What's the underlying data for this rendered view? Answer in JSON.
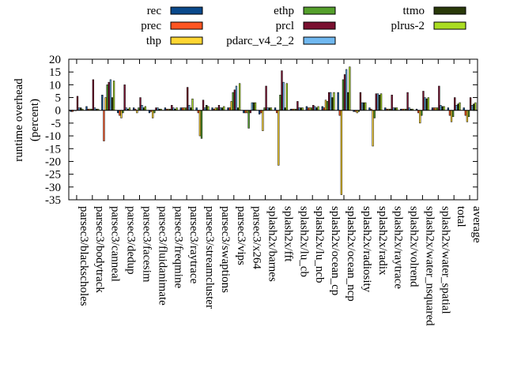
{
  "chart_data": {
    "type": "bar",
    "ylabel": "runtime overhead (percent)",
    "ylabel_lines": [
      "runtime overhead",
      "(percent)"
    ],
    "ylim": [
      -35,
      20
    ],
    "yticks": [
      20,
      15,
      10,
      5,
      0,
      -5,
      -10,
      -15,
      -20,
      -25,
      -30,
      -35
    ],
    "grid": false,
    "legend_position": "top",
    "categories": [
      "parsec3/blackscholes",
      "parsec3/bodytrack",
      "parsec3/canneal",
      "parsec3/dedup",
      "parsec3/facesim",
      "parsec3/fluidanimate",
      "parsec3/freqmine",
      "parsec3/raytrace",
      "parsec3/streamcluster",
      "parsec3/swaptions",
      "parsec3/vips",
      "parsec3/x264",
      "splash2x/barnes",
      "splash2x/fft",
      "splash2x/lu_cb",
      "splash2x/lu_ncb",
      "splash2x/ocean_cp",
      "splash2x/ocean_ncp",
      "splash2x/radiosity",
      "splash2x/radix",
      "splash2x/raytrace",
      "splash2x/volrend",
      "splash2x/water_nsquared",
      "splash2x/water_spatial",
      "total",
      "average"
    ],
    "series": [
      {
        "name": "rec",
        "color": "#0b4a8c",
        "values": [
          -0.5,
          1.5,
          6,
          -1,
          1,
          -1,
          1,
          1,
          1,
          1,
          1,
          -1,
          -1.5,
          1,
          0.5,
          1.5,
          1.5,
          7,
          -0.5,
          1,
          1,
          0.5,
          0.5,
          1,
          1,
          1
        ]
      },
      {
        "name": "prec",
        "color": "#ff5522",
        "values": [
          -0.5,
          0.5,
          -12,
          -2,
          0.5,
          -0.5,
          0.5,
          1,
          -1,
          0.5,
          1,
          -1,
          -1,
          -1,
          0.5,
          1,
          1,
          -2,
          -0.5,
          0.5,
          0.5,
          0.5,
          -1,
          1,
          -2,
          -2
        ]
      },
      {
        "name": "thp",
        "color": "#ffd633",
        "values": [
          0,
          0.5,
          5,
          -3,
          -1,
          -3,
          0.5,
          1,
          -10,
          1,
          3.5,
          -1,
          -8,
          -21.5,
          0.5,
          1,
          4,
          -33,
          -1,
          -14,
          0.5,
          0.5,
          -5,
          1,
          -4.5,
          -4.5
        ]
      },
      {
        "name": "ethp",
        "color": "#55a02c",
        "values": [
          0,
          0.5,
          10,
          -1,
          1,
          -1,
          0.5,
          1,
          -11,
          1,
          7,
          -7,
          1,
          6,
          0.5,
          1,
          3.5,
          12,
          -0.5,
          -3,
          0.5,
          0.5,
          -2,
          1,
          -2.5,
          -2.5
        ]
      },
      {
        "name": "prcl",
        "color": "#7a1030",
        "values": [
          5.5,
          12,
          11,
          10,
          5,
          1,
          2,
          9,
          4,
          2,
          8,
          -1,
          9.5,
          15.5,
          3.5,
          2,
          7,
          14,
          7,
          6.5,
          6,
          7,
          7.5,
          9.5,
          5,
          5
        ]
      },
      {
        "name": "pdarc_v4_2_2",
        "color": "#70b8f0",
        "values": [
          1,
          1,
          12,
          1,
          2,
          1,
          1,
          2,
          1,
          1,
          9.5,
          3,
          1,
          11,
          1,
          1.5,
          7,
          16,
          3,
          6.5,
          1,
          1,
          5,
          2,
          2,
          2
        ]
      },
      {
        "name": "ttmo",
        "color": "#2a3a0a",
        "values": [
          1,
          0.5,
          5,
          0.5,
          1,
          0.5,
          0.5,
          1,
          2,
          1,
          1,
          3,
          1,
          1,
          1,
          1,
          5,
          7,
          3,
          6,
          1,
          0.5,
          4.5,
          1.5,
          2.5,
          2.5
        ]
      },
      {
        "name": "plrus-2",
        "color": "#aadd22",
        "values": [
          0.5,
          0.5,
          11.5,
          1,
          1.5,
          0.5,
          1,
          4.5,
          1.5,
          1.5,
          10.5,
          3,
          1,
          10.5,
          1,
          1.5,
          7,
          17,
          3,
          6.5,
          1,
          0.5,
          5,
          1.5,
          3,
          3
        ]
      }
    ]
  }
}
